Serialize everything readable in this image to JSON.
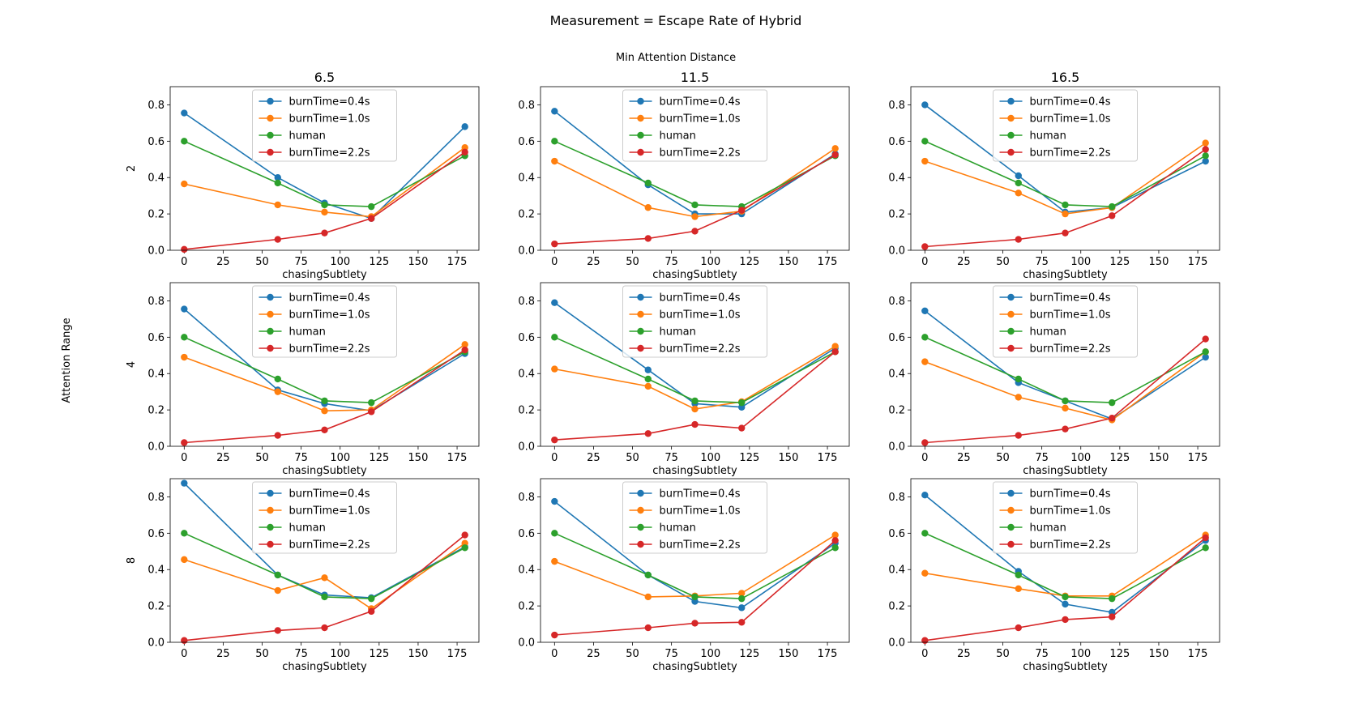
{
  "suptitle": "Measurement = Escape Rate of Hybrid",
  "col_header": "Min Attention Distance",
  "row_header": "Attention Range",
  "col_titles": [
    "6.5",
    "11.5",
    "16.5"
  ],
  "row_labels": [
    "2",
    "4",
    "8"
  ],
  "xlabel": "chasingSubtlety",
  "x": [
    0,
    60,
    90,
    120,
    180
  ],
  "xlim": [
    -9,
    189
  ],
  "ylim": [
    0,
    0.9
  ],
  "xticks": [
    "0",
    "25",
    "50",
    "75",
    "100",
    "125",
    "150",
    "175"
  ],
  "yticks": [
    "0.0",
    "0.2",
    "0.4",
    "0.6",
    "0.8"
  ],
  "legend": {
    "placement": "upper center",
    "entries": [
      "burnTime=0.4s",
      "burnTime=1.0s",
      "human",
      "burnTime=2.2s"
    ]
  },
  "colors": {
    "burnTime=0.4s": "#1f77b4",
    "burnTime=1.0s": "#ff7f0e",
    "human": "#2ca02c",
    "burnTime=2.2s": "#d62728"
  },
  "chart_data": [
    {
      "type": "line",
      "row": "2",
      "col": "6.5",
      "x": [
        0,
        60,
        90,
        120,
        180
      ],
      "series": [
        {
          "name": "burnTime=0.4s",
          "values": [
            0.755,
            0.4,
            0.26,
            0.175,
            0.68
          ]
        },
        {
          "name": "burnTime=1.0s",
          "values": [
            0.365,
            0.25,
            0.21,
            0.185,
            0.565
          ]
        },
        {
          "name": "human",
          "values": [
            0.6,
            0.37,
            0.25,
            0.24,
            0.52
          ]
        },
        {
          "name": "burnTime=2.2s",
          "values": [
            0.005,
            0.06,
            0.095,
            0.175,
            0.54
          ]
        }
      ]
    },
    {
      "type": "line",
      "row": "2",
      "col": "11.5",
      "x": [
        0,
        60,
        90,
        120,
        180
      ],
      "series": [
        {
          "name": "burnTime=0.4s",
          "values": [
            0.765,
            0.36,
            0.2,
            0.2,
            0.53
          ]
        },
        {
          "name": "burnTime=1.0s",
          "values": [
            0.49,
            0.235,
            0.185,
            0.215,
            0.56
          ]
        },
        {
          "name": "human",
          "values": [
            0.6,
            0.37,
            0.25,
            0.24,
            0.52
          ]
        },
        {
          "name": "burnTime=2.2s",
          "values": [
            0.035,
            0.065,
            0.105,
            0.22,
            0.525
          ]
        }
      ]
    },
    {
      "type": "line",
      "row": "2",
      "col": "16.5",
      "x": [
        0,
        60,
        90,
        120,
        180
      ],
      "series": [
        {
          "name": "burnTime=0.4s",
          "values": [
            0.8,
            0.41,
            0.21,
            0.235,
            0.49
          ]
        },
        {
          "name": "burnTime=1.0s",
          "values": [
            0.49,
            0.315,
            0.2,
            0.235,
            0.59
          ]
        },
        {
          "name": "human",
          "values": [
            0.6,
            0.37,
            0.25,
            0.24,
            0.52
          ]
        },
        {
          "name": "burnTime=2.2s",
          "values": [
            0.02,
            0.06,
            0.095,
            0.19,
            0.555
          ]
        }
      ]
    },
    {
      "type": "line",
      "row": "4",
      "col": "6.5",
      "x": [
        0,
        60,
        90,
        120,
        180
      ],
      "series": [
        {
          "name": "burnTime=0.4s",
          "values": [
            0.755,
            0.31,
            0.235,
            0.195,
            0.51
          ]
        },
        {
          "name": "burnTime=1.0s",
          "values": [
            0.49,
            0.3,
            0.195,
            0.2,
            0.56
          ]
        },
        {
          "name": "human",
          "values": [
            0.6,
            0.37,
            0.25,
            0.24,
            0.52
          ]
        },
        {
          "name": "burnTime=2.2s",
          "values": [
            0.02,
            0.06,
            0.09,
            0.19,
            0.53
          ]
        }
      ]
    },
    {
      "type": "line",
      "row": "4",
      "col": "11.5",
      "x": [
        0,
        60,
        90,
        120,
        180
      ],
      "series": [
        {
          "name": "burnTime=0.4s",
          "values": [
            0.79,
            0.42,
            0.235,
            0.215,
            0.54
          ]
        },
        {
          "name": "burnTime=1.0s",
          "values": [
            0.425,
            0.33,
            0.205,
            0.245,
            0.55
          ]
        },
        {
          "name": "human",
          "values": [
            0.6,
            0.37,
            0.25,
            0.24,
            0.52
          ]
        },
        {
          "name": "burnTime=2.2s",
          "values": [
            0.035,
            0.07,
            0.12,
            0.1,
            0.52
          ]
        }
      ]
    },
    {
      "type": "line",
      "row": "4",
      "col": "16.5",
      "x": [
        0,
        60,
        90,
        120,
        180
      ],
      "series": [
        {
          "name": "burnTime=0.4s",
          "values": [
            0.745,
            0.35,
            0.25,
            0.15,
            0.49
          ]
        },
        {
          "name": "burnTime=1.0s",
          "values": [
            0.465,
            0.27,
            0.21,
            0.145,
            0.52
          ]
        },
        {
          "name": "human",
          "values": [
            0.6,
            0.37,
            0.25,
            0.24,
            0.52
          ]
        },
        {
          "name": "burnTime=2.2s",
          "values": [
            0.02,
            0.06,
            0.095,
            0.155,
            0.59
          ]
        }
      ]
    },
    {
      "type": "line",
      "row": "8",
      "col": "6.5",
      "x": [
        0,
        60,
        90,
        120,
        180
      ],
      "series": [
        {
          "name": "burnTime=0.4s",
          "values": [
            0.875,
            0.37,
            0.26,
            0.245,
            0.525
          ]
        },
        {
          "name": "burnTime=1.0s",
          "values": [
            0.455,
            0.285,
            0.355,
            0.185,
            0.545
          ]
        },
        {
          "name": "human",
          "values": [
            0.6,
            0.37,
            0.25,
            0.24,
            0.52
          ]
        },
        {
          "name": "burnTime=2.2s",
          "values": [
            0.01,
            0.065,
            0.08,
            0.17,
            0.59
          ]
        }
      ]
    },
    {
      "type": "line",
      "row": "8",
      "col": "11.5",
      "x": [
        0,
        60,
        90,
        120,
        180
      ],
      "series": [
        {
          "name": "burnTime=0.4s",
          "values": [
            0.775,
            0.37,
            0.225,
            0.19,
            0.545
          ]
        },
        {
          "name": "burnTime=1.0s",
          "values": [
            0.445,
            0.25,
            0.255,
            0.27,
            0.59
          ]
        },
        {
          "name": "human",
          "values": [
            0.6,
            0.37,
            0.25,
            0.24,
            0.52
          ]
        },
        {
          "name": "burnTime=2.2s",
          "values": [
            0.04,
            0.08,
            0.105,
            0.11,
            0.56
          ]
        }
      ]
    },
    {
      "type": "line",
      "row": "8",
      "col": "16.5",
      "x": [
        0,
        60,
        90,
        120,
        180
      ],
      "series": [
        {
          "name": "burnTime=0.4s",
          "values": [
            0.81,
            0.39,
            0.21,
            0.165,
            0.56
          ]
        },
        {
          "name": "burnTime=1.0s",
          "values": [
            0.38,
            0.295,
            0.255,
            0.255,
            0.59
          ]
        },
        {
          "name": "human",
          "values": [
            0.6,
            0.37,
            0.25,
            0.24,
            0.52
          ]
        },
        {
          "name": "burnTime=2.2s",
          "values": [
            0.01,
            0.08,
            0.125,
            0.14,
            0.575
          ]
        }
      ]
    }
  ]
}
